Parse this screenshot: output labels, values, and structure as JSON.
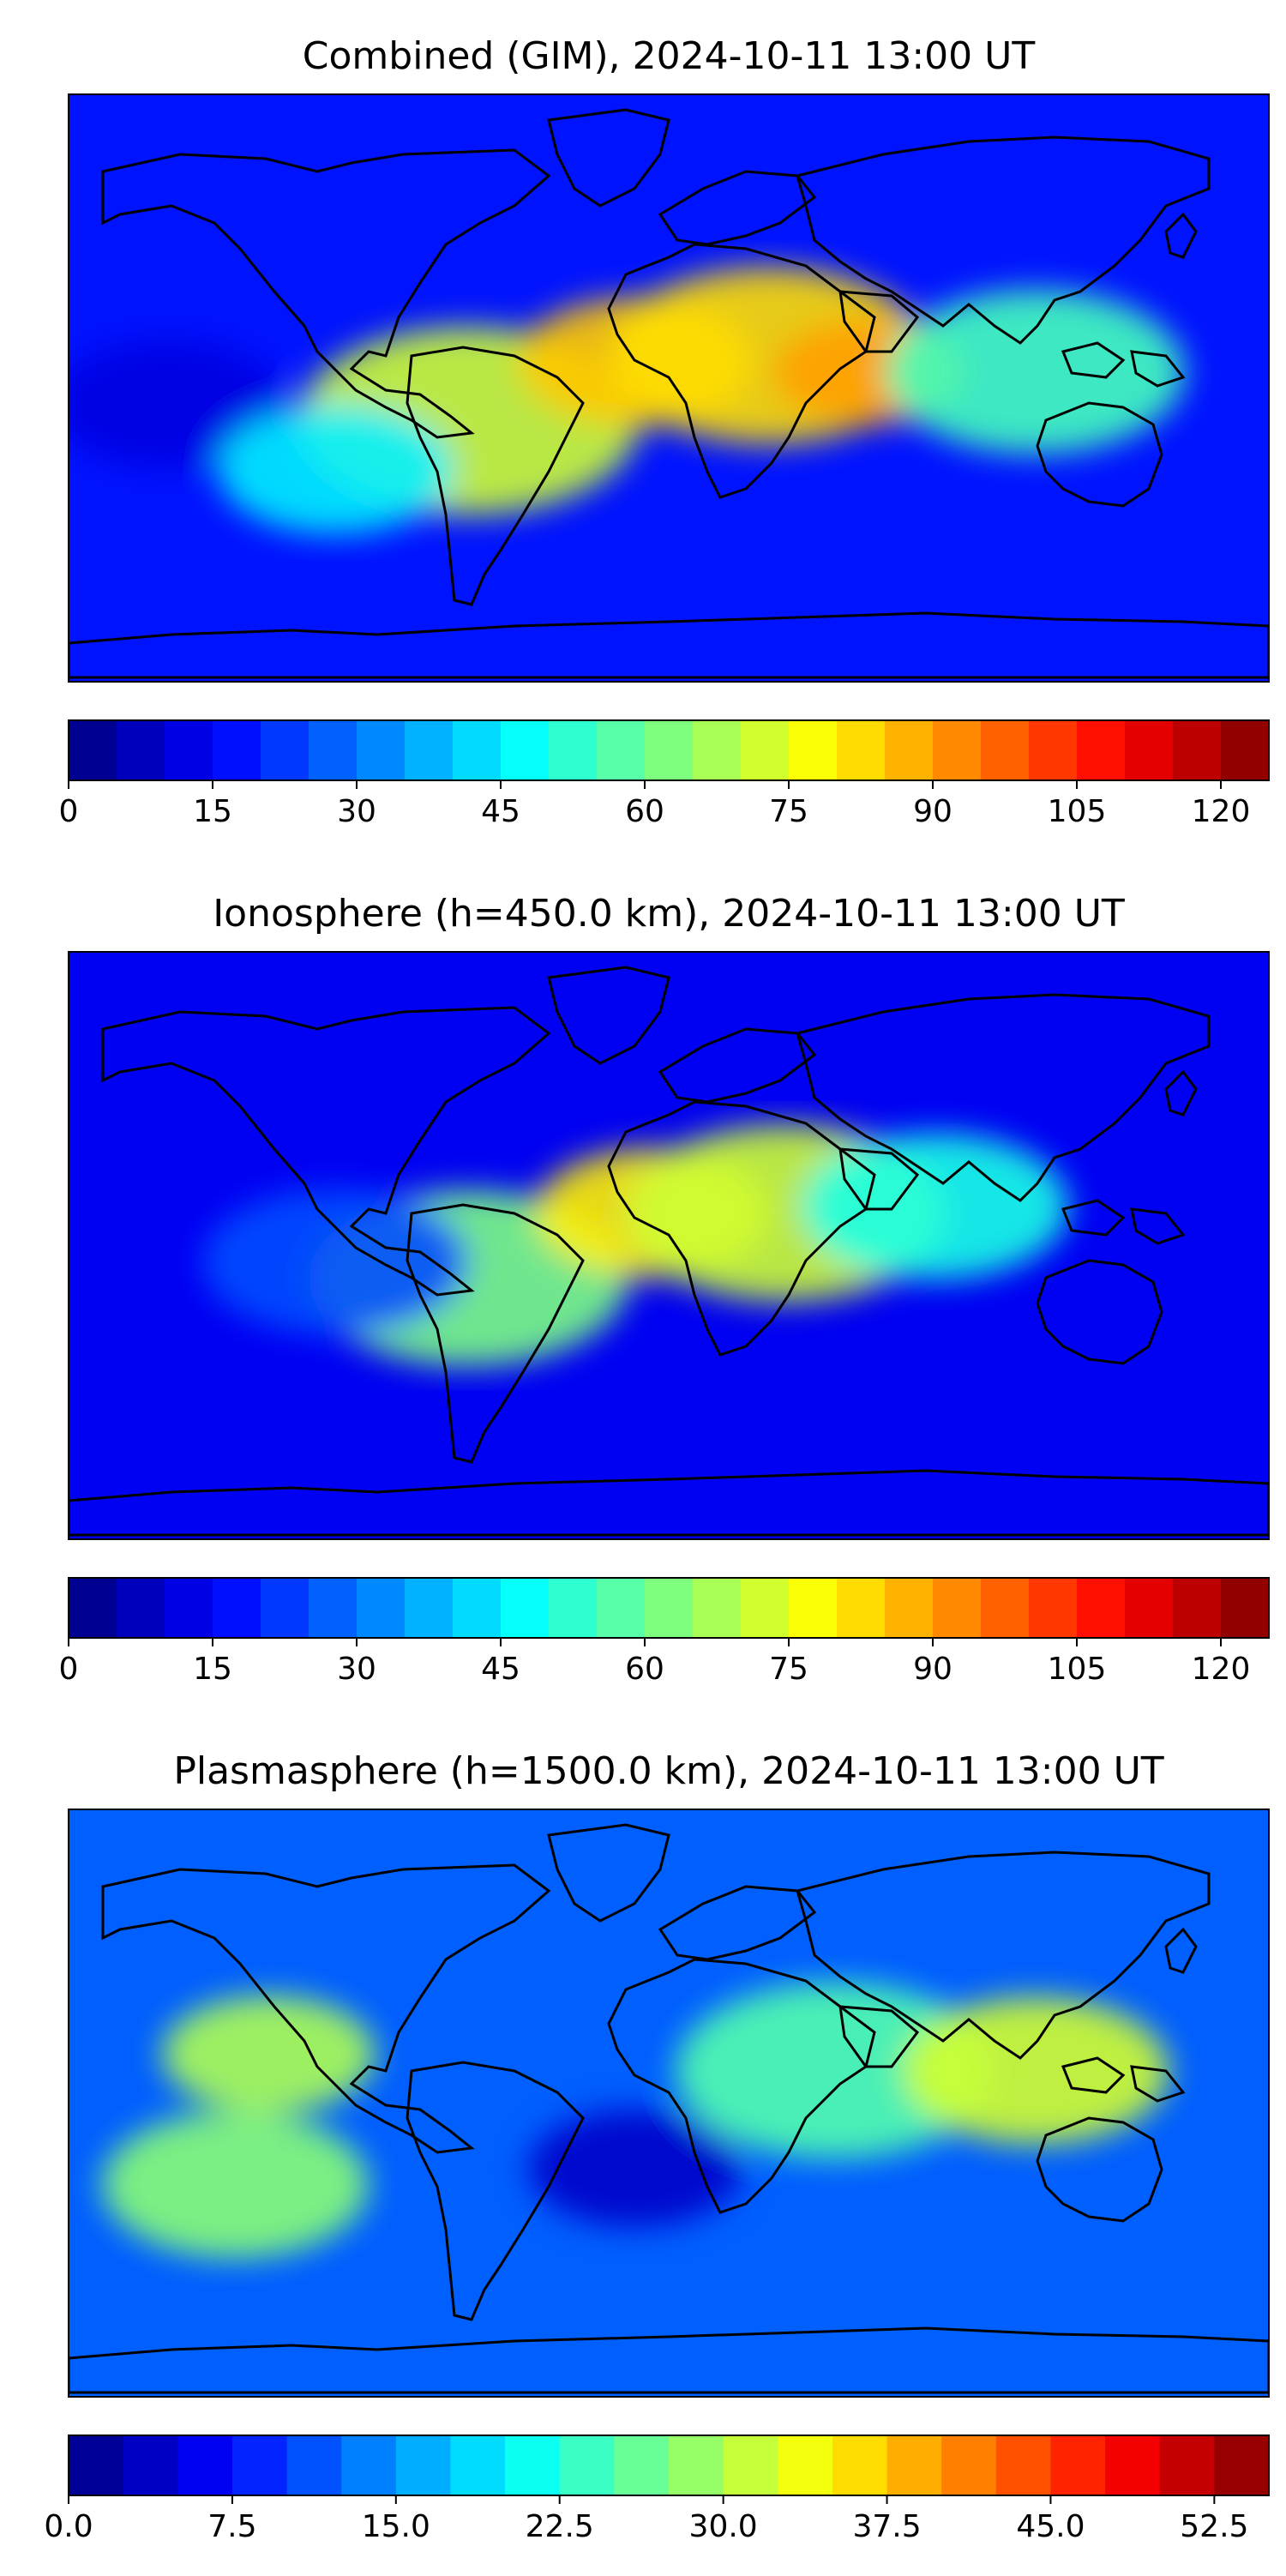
{
  "panels": [
    {
      "title": "Combined (GIM), 2024-10-11 13:00 UT",
      "colorbar": {
        "min": 0,
        "max": 125,
        "step": 5,
        "ticks": [
          "0",
          "15",
          "30",
          "45",
          "60",
          "75",
          "90",
          "105",
          "120"
        ],
        "tick_values": [
          0,
          15,
          30,
          45,
          60,
          75,
          90,
          105,
          120
        ]
      },
      "features": [
        {
          "lon": -150,
          "lat": -5,
          "value": 12,
          "spread": 22
        },
        {
          "lon": -60,
          "lat": -10,
          "value": 72,
          "spread": 32
        },
        {
          "lon": -10,
          "lat": 8,
          "value": 85,
          "spread": 22
        },
        {
          "lon": 30,
          "lat": 10,
          "value": 82,
          "spread": 30
        },
        {
          "lon": 60,
          "lat": 5,
          "value": 90,
          "spread": 18
        },
        {
          "lon": 110,
          "lat": 5,
          "value": 55,
          "spread": 28
        },
        {
          "lon": -100,
          "lat": -25,
          "value": 45,
          "spread": 22
        }
      ],
      "background_value": 18
    },
    {
      "title": "Ionosphere  (h=450.0 km), 2024-10-11 13:00 UT",
      "colorbar": {
        "min": 0,
        "max": 125,
        "step": 5,
        "ticks": [
          "0",
          "15",
          "30",
          "45",
          "60",
          "75",
          "90",
          "105",
          "120"
        ],
        "tick_values": [
          0,
          15,
          30,
          45,
          60,
          75,
          90,
          105,
          120
        ]
      },
      "features": [
        {
          "lon": -60,
          "lat": -10,
          "value": 62,
          "spread": 30
        },
        {
          "lon": -5,
          "lat": 10,
          "value": 80,
          "spread": 22
        },
        {
          "lon": 35,
          "lat": 10,
          "value": 72,
          "spread": 30
        },
        {
          "lon": 80,
          "lat": 12,
          "value": 50,
          "spread": 25
        },
        {
          "lon": -100,
          "lat": -5,
          "value": 25,
          "spread": 25
        }
      ],
      "background_value": 14
    },
    {
      "title": "Plasmasphere (h=1500.0 km), 2024-10-11 13:00 UT",
      "colorbar": {
        "min": 0,
        "max": 55,
        "step": 2.5,
        "ticks": [
          "0.0",
          "7.5",
          "15.0",
          "22.5",
          "30.0",
          "37.5",
          "45.0",
          "52.5"
        ],
        "tick_values": [
          0,
          7.5,
          15,
          22.5,
          30,
          37.5,
          45,
          52.5
        ]
      },
      "features": [
        {
          "lon": -120,
          "lat": 15,
          "value": 30,
          "spread": 20
        },
        {
          "lon": -130,
          "lat": -25,
          "value": 28,
          "spread": 25
        },
        {
          "lon": 50,
          "lat": 10,
          "value": 25,
          "spread": 30
        },
        {
          "lon": 110,
          "lat": 10,
          "value": 32,
          "spread": 25
        },
        {
          "lon": -10,
          "lat": -20,
          "value": 4,
          "spread": 20
        }
      ],
      "background_value": 12
    }
  ],
  "colors": {
    "jet_stops": [
      "#00007f",
      "#0000ff",
      "#007fff",
      "#00ffff",
      "#7fff7f",
      "#ffff00",
      "#ff7f00",
      "#ff0000",
      "#7f0000"
    ],
    "coastline": "#000000",
    "frame": "#000000"
  }
}
